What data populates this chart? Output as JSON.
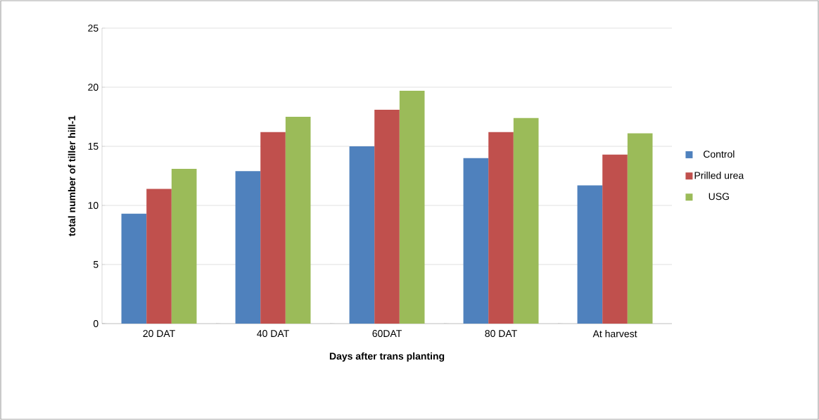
{
  "chart_data": {
    "type": "bar",
    "xlabel": "Days after trans planting",
    "ylabel": "total number of tiller hill-1",
    "categories": [
      "20 DAT",
      "40 DAT",
      "60DAT",
      "80 DAT",
      "At harvest"
    ],
    "series": [
      {
        "name": "Control",
        "color": "#4f81bd",
        "values": [
          9.3,
          12.9,
          15.0,
          14.0,
          11.7
        ]
      },
      {
        "name": "Prilled urea",
        "color": "#c0504d",
        "values": [
          11.4,
          16.2,
          18.1,
          16.2,
          14.3
        ]
      },
      {
        "name": "USG",
        "color": "#9bbb59",
        "values": [
          13.1,
          17.5,
          19.7,
          17.4,
          16.1
        ]
      }
    ],
    "ylim": [
      0,
      25
    ],
    "yticks": [
      0,
      5,
      10,
      15,
      20,
      25
    ],
    "grid": "y",
    "legend": "right"
  }
}
